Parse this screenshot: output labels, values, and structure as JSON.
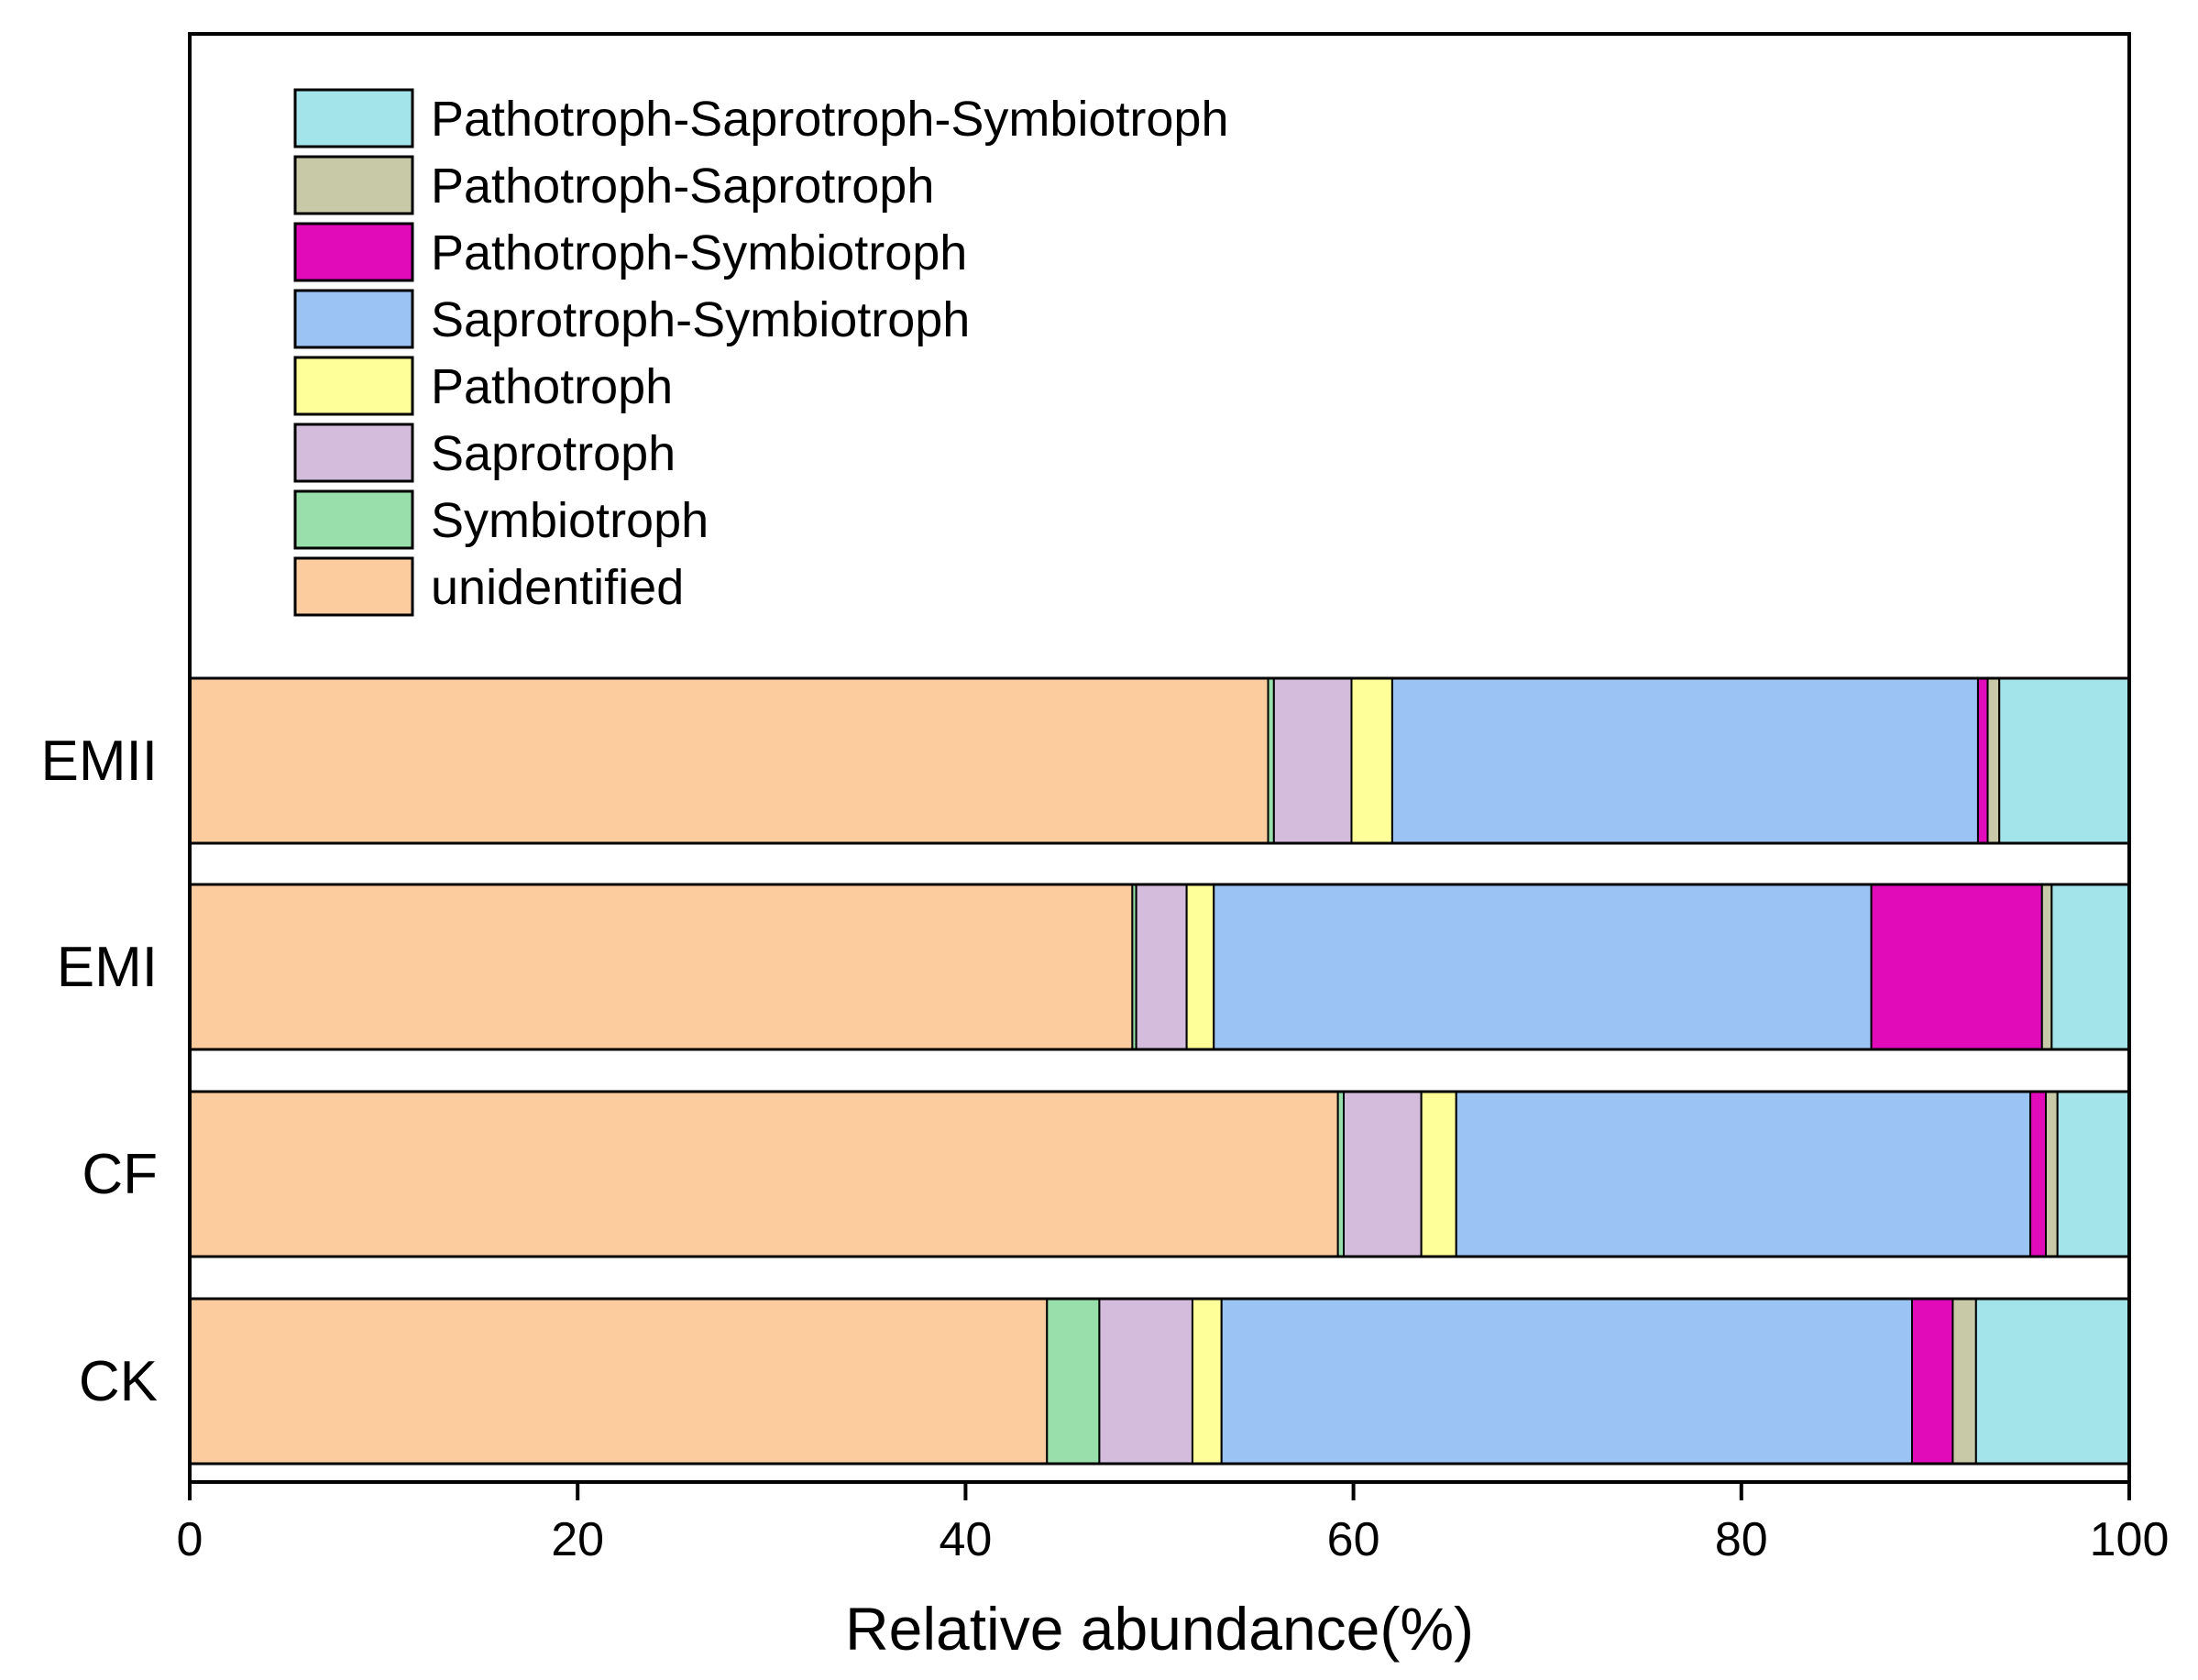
{
  "chart_data": {
    "type": "bar",
    "orientation": "horizontal",
    "stacked": true,
    "title": "",
    "xlabel": "Relative abundance(%)",
    "ylabel": "",
    "xlim": [
      0,
      100
    ],
    "xticks": [
      0,
      20,
      40,
      60,
      80,
      100
    ],
    "grid": false,
    "legend_position": "top-left",
    "categories": [
      "CK",
      "CF",
      "EMI",
      "EMII"
    ],
    "series": [
      {
        "name": "unidentified",
        "color": "#FDCC9E",
        "values": [
          44.2,
          59.2,
          48.6,
          55.6
        ]
      },
      {
        "name": "Symbiotroph",
        "color": "#98DFAB",
        "values": [
          2.7,
          0.3,
          0.2,
          0.3
        ]
      },
      {
        "name": "Saprotroph",
        "color": "#D4BCDD",
        "values": [
          4.8,
          4.0,
          2.6,
          4.0
        ]
      },
      {
        "name": "Pathotroph",
        "color": "#FFFF99",
        "values": [
          1.5,
          1.8,
          1.4,
          2.1
        ]
      },
      {
        "name": "Saprotroph-Symbiotroph",
        "color": "#9BC3F3",
        "values": [
          35.6,
          29.6,
          33.9,
          30.2
        ]
      },
      {
        "name": "Pathotroph-Symbiotroph",
        "color": "#E10BB9",
        "values": [
          2.1,
          0.8,
          8.8,
          0.5
        ]
      },
      {
        "name": "Pathotroph-Saprotroph",
        "color": "#C8C9A7",
        "values": [
          1.2,
          0.6,
          0.5,
          0.6
        ]
      },
      {
        "name": "Pathotroph-Saprotroph-Symbiotroph",
        "color": "#A3E4EA",
        "values": [
          7.9,
          3.7,
          4.0,
          6.7
        ]
      }
    ]
  }
}
